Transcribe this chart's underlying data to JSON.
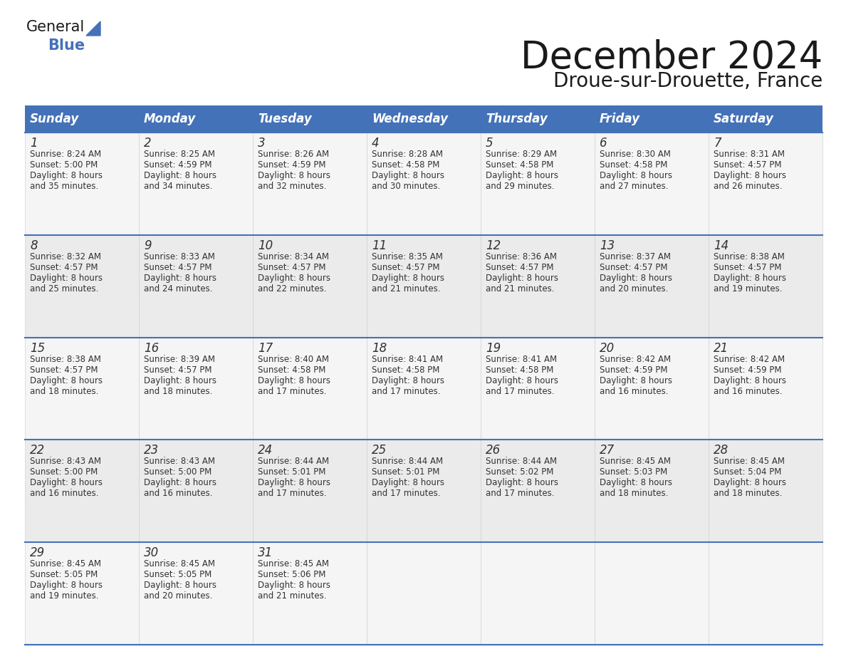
{
  "title": "December 2024",
  "subtitle": "Droue-sur-Drouette, France",
  "header_bg_color": "#4472b8",
  "header_text_color": "#ffffff",
  "text_color": "#333333",
  "border_color": "#4472b8",
  "days_of_week": [
    "Sunday",
    "Monday",
    "Tuesday",
    "Wednesday",
    "Thursday",
    "Friday",
    "Saturday"
  ],
  "weeks": [
    [
      {
        "day": "1",
        "sunrise": "8:24 AM",
        "sunset": "5:00 PM",
        "daylight_line1": "8 hours",
        "daylight_line2": "and 35 minutes."
      },
      {
        "day": "2",
        "sunrise": "8:25 AM",
        "sunset": "4:59 PM",
        "daylight_line1": "8 hours",
        "daylight_line2": "and 34 minutes."
      },
      {
        "day": "3",
        "sunrise": "8:26 AM",
        "sunset": "4:59 PM",
        "daylight_line1": "8 hours",
        "daylight_line2": "and 32 minutes."
      },
      {
        "day": "4",
        "sunrise": "8:28 AM",
        "sunset": "4:58 PM",
        "daylight_line1": "8 hours",
        "daylight_line2": "and 30 minutes."
      },
      {
        "day": "5",
        "sunrise": "8:29 AM",
        "sunset": "4:58 PM",
        "daylight_line1": "8 hours",
        "daylight_line2": "and 29 minutes."
      },
      {
        "day": "6",
        "sunrise": "8:30 AM",
        "sunset": "4:58 PM",
        "daylight_line1": "8 hours",
        "daylight_line2": "and 27 minutes."
      },
      {
        "day": "7",
        "sunrise": "8:31 AM",
        "sunset": "4:57 PM",
        "daylight_line1": "8 hours",
        "daylight_line2": "and 26 minutes."
      }
    ],
    [
      {
        "day": "8",
        "sunrise": "8:32 AM",
        "sunset": "4:57 PM",
        "daylight_line1": "8 hours",
        "daylight_line2": "and 25 minutes."
      },
      {
        "day": "9",
        "sunrise": "8:33 AM",
        "sunset": "4:57 PM",
        "daylight_line1": "8 hours",
        "daylight_line2": "and 24 minutes."
      },
      {
        "day": "10",
        "sunrise": "8:34 AM",
        "sunset": "4:57 PM",
        "daylight_line1": "8 hours",
        "daylight_line2": "and 22 minutes."
      },
      {
        "day": "11",
        "sunrise": "8:35 AM",
        "sunset": "4:57 PM",
        "daylight_line1": "8 hours",
        "daylight_line2": "and 21 minutes."
      },
      {
        "day": "12",
        "sunrise": "8:36 AM",
        "sunset": "4:57 PM",
        "daylight_line1": "8 hours",
        "daylight_line2": "and 21 minutes."
      },
      {
        "day": "13",
        "sunrise": "8:37 AM",
        "sunset": "4:57 PM",
        "daylight_line1": "8 hours",
        "daylight_line2": "and 20 minutes."
      },
      {
        "day": "14",
        "sunrise": "8:38 AM",
        "sunset": "4:57 PM",
        "daylight_line1": "8 hours",
        "daylight_line2": "and 19 minutes."
      }
    ],
    [
      {
        "day": "15",
        "sunrise": "8:38 AM",
        "sunset": "4:57 PM",
        "daylight_line1": "8 hours",
        "daylight_line2": "and 18 minutes."
      },
      {
        "day": "16",
        "sunrise": "8:39 AM",
        "sunset": "4:57 PM",
        "daylight_line1": "8 hours",
        "daylight_line2": "and 18 minutes."
      },
      {
        "day": "17",
        "sunrise": "8:40 AM",
        "sunset": "4:58 PM",
        "daylight_line1": "8 hours",
        "daylight_line2": "and 17 minutes."
      },
      {
        "day": "18",
        "sunrise": "8:41 AM",
        "sunset": "4:58 PM",
        "daylight_line1": "8 hours",
        "daylight_line2": "and 17 minutes."
      },
      {
        "day": "19",
        "sunrise": "8:41 AM",
        "sunset": "4:58 PM",
        "daylight_line1": "8 hours",
        "daylight_line2": "and 17 minutes."
      },
      {
        "day": "20",
        "sunrise": "8:42 AM",
        "sunset": "4:59 PM",
        "daylight_line1": "8 hours",
        "daylight_line2": "and 16 minutes."
      },
      {
        "day": "21",
        "sunrise": "8:42 AM",
        "sunset": "4:59 PM",
        "daylight_line1": "8 hours",
        "daylight_line2": "and 16 minutes."
      }
    ],
    [
      {
        "day": "22",
        "sunrise": "8:43 AM",
        "sunset": "5:00 PM",
        "daylight_line1": "8 hours",
        "daylight_line2": "and 16 minutes."
      },
      {
        "day": "23",
        "sunrise": "8:43 AM",
        "sunset": "5:00 PM",
        "daylight_line1": "8 hours",
        "daylight_line2": "and 16 minutes."
      },
      {
        "day": "24",
        "sunrise": "8:44 AM",
        "sunset": "5:01 PM",
        "daylight_line1": "8 hours",
        "daylight_line2": "and 17 minutes."
      },
      {
        "day": "25",
        "sunrise": "8:44 AM",
        "sunset": "5:01 PM",
        "daylight_line1": "8 hours",
        "daylight_line2": "and 17 minutes."
      },
      {
        "day": "26",
        "sunrise": "8:44 AM",
        "sunset": "5:02 PM",
        "daylight_line1": "8 hours",
        "daylight_line2": "and 17 minutes."
      },
      {
        "day": "27",
        "sunrise": "8:45 AM",
        "sunset": "5:03 PM",
        "daylight_line1": "8 hours",
        "daylight_line2": "and 18 minutes."
      },
      {
        "day": "28",
        "sunrise": "8:45 AM",
        "sunset": "5:04 PM",
        "daylight_line1": "8 hours",
        "daylight_line2": "and 18 minutes."
      }
    ],
    [
      {
        "day": "29",
        "sunrise": "8:45 AM",
        "sunset": "5:05 PM",
        "daylight_line1": "8 hours",
        "daylight_line2": "and 19 minutes."
      },
      {
        "day": "30",
        "sunrise": "8:45 AM",
        "sunset": "5:05 PM",
        "daylight_line1": "8 hours",
        "daylight_line2": "and 20 minutes."
      },
      {
        "day": "31",
        "sunrise": "8:45 AM",
        "sunset": "5:06 PM",
        "daylight_line1": "8 hours",
        "daylight_line2": "and 21 minutes."
      },
      null,
      null,
      null,
      null
    ]
  ],
  "logo_general_color": "#1a1a1a",
  "logo_blue_color": "#4472b8",
  "logo_triangle_color": "#4472b8"
}
